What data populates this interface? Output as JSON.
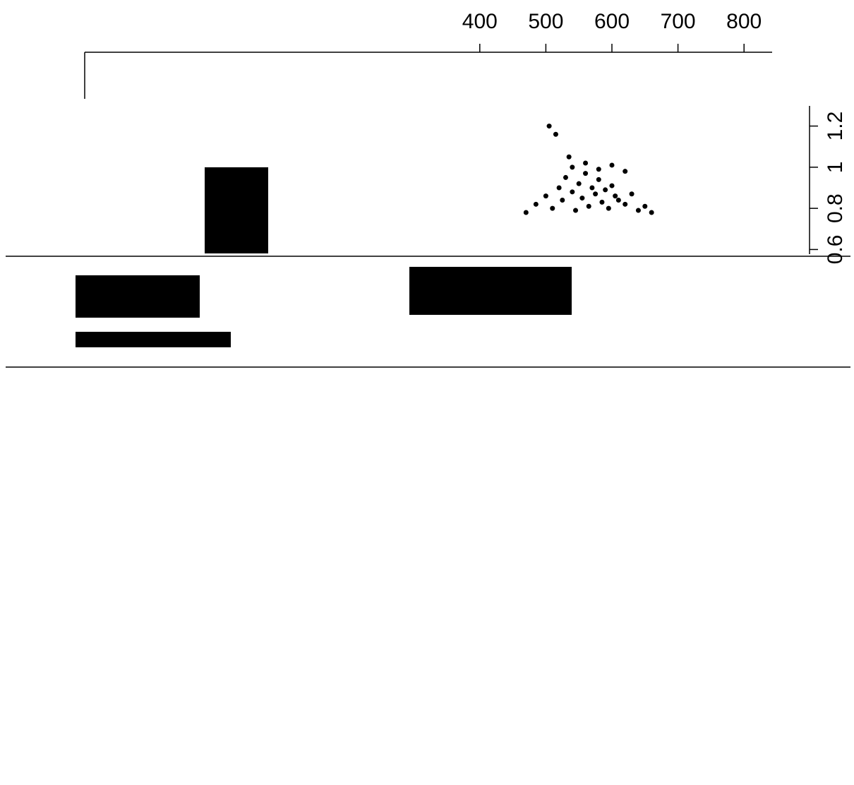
{
  "chart_data": {
    "type": "scatter",
    "x": [
      470,
      485,
      500,
      510,
      520,
      525,
      530,
      540,
      545,
      550,
      555,
      560,
      565,
      570,
      575,
      580,
      585,
      590,
      595,
      600,
      605,
      610,
      620,
      630,
      640,
      650,
      660,
      540,
      560,
      580,
      600,
      620,
      505,
      515,
      535
    ],
    "values": [
      0.78,
      0.82,
      0.86,
      0.8,
      0.9,
      0.84,
      0.95,
      0.88,
      0.79,
      0.92,
      0.85,
      0.97,
      0.81,
      0.9,
      0.87,
      0.94,
      0.83,
      0.89,
      0.8,
      0.91,
      0.86,
      0.84,
      0.82,
      0.87,
      0.79,
      0.81,
      0.78,
      1.0,
      1.02,
      0.99,
      1.01,
      0.98,
      1.2,
      1.16,
      1.05
    ],
    "color": "#000000",
    "xlim": [
      350,
      850
    ],
    "xticks": [
      400,
      500,
      600,
      700,
      800
    ],
    "ylim": [
      0.55,
      1.25
    ],
    "yticks": [
      0.6,
      0.8,
      1,
      1.2
    ]
  }
}
